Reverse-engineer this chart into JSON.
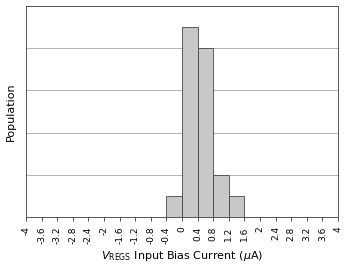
{
  "title": "",
  "ylabel": "Population",
  "bar_edges": [
    -4.0,
    -3.6,
    -3.2,
    -2.8,
    -2.4,
    -2.0,
    -1.6,
    -1.2,
    -0.8,
    -0.4,
    0.0,
    0.4,
    0.8,
    1.2,
    1.6,
    2.0,
    2.4,
    2.8,
    3.2,
    3.6,
    4.0
  ],
  "bar_heights": [
    0,
    0,
    0,
    0,
    0,
    0,
    0,
    0,
    0,
    1,
    9,
    8,
    2,
    1,
    0,
    0,
    0,
    0,
    0,
    0
  ],
  "bar_color": "#c8c8c8",
  "bar_edgecolor": "#444444",
  "xlim": [
    -4.0,
    4.0
  ],
  "ylim": [
    0,
    10
  ],
  "yticks": [
    0,
    2,
    4,
    6,
    8,
    10
  ],
  "xtick_values": [
    -4.0,
    -3.6,
    -3.2,
    -2.8,
    -2.4,
    -2.0,
    -1.6,
    -1.2,
    -0.8,
    -0.4,
    0.0,
    0.4,
    0.8,
    1.2,
    1.6,
    2.0,
    2.4,
    2.8,
    3.2,
    3.6,
    4.0
  ],
  "grid_color": "#aaaaaa",
  "bg_color": "#ffffff",
  "bar_linewidth": 0.6,
  "ylabel_fontsize": 8,
  "xlabel_fontsize": 8,
  "tick_fontsize": 6.5
}
